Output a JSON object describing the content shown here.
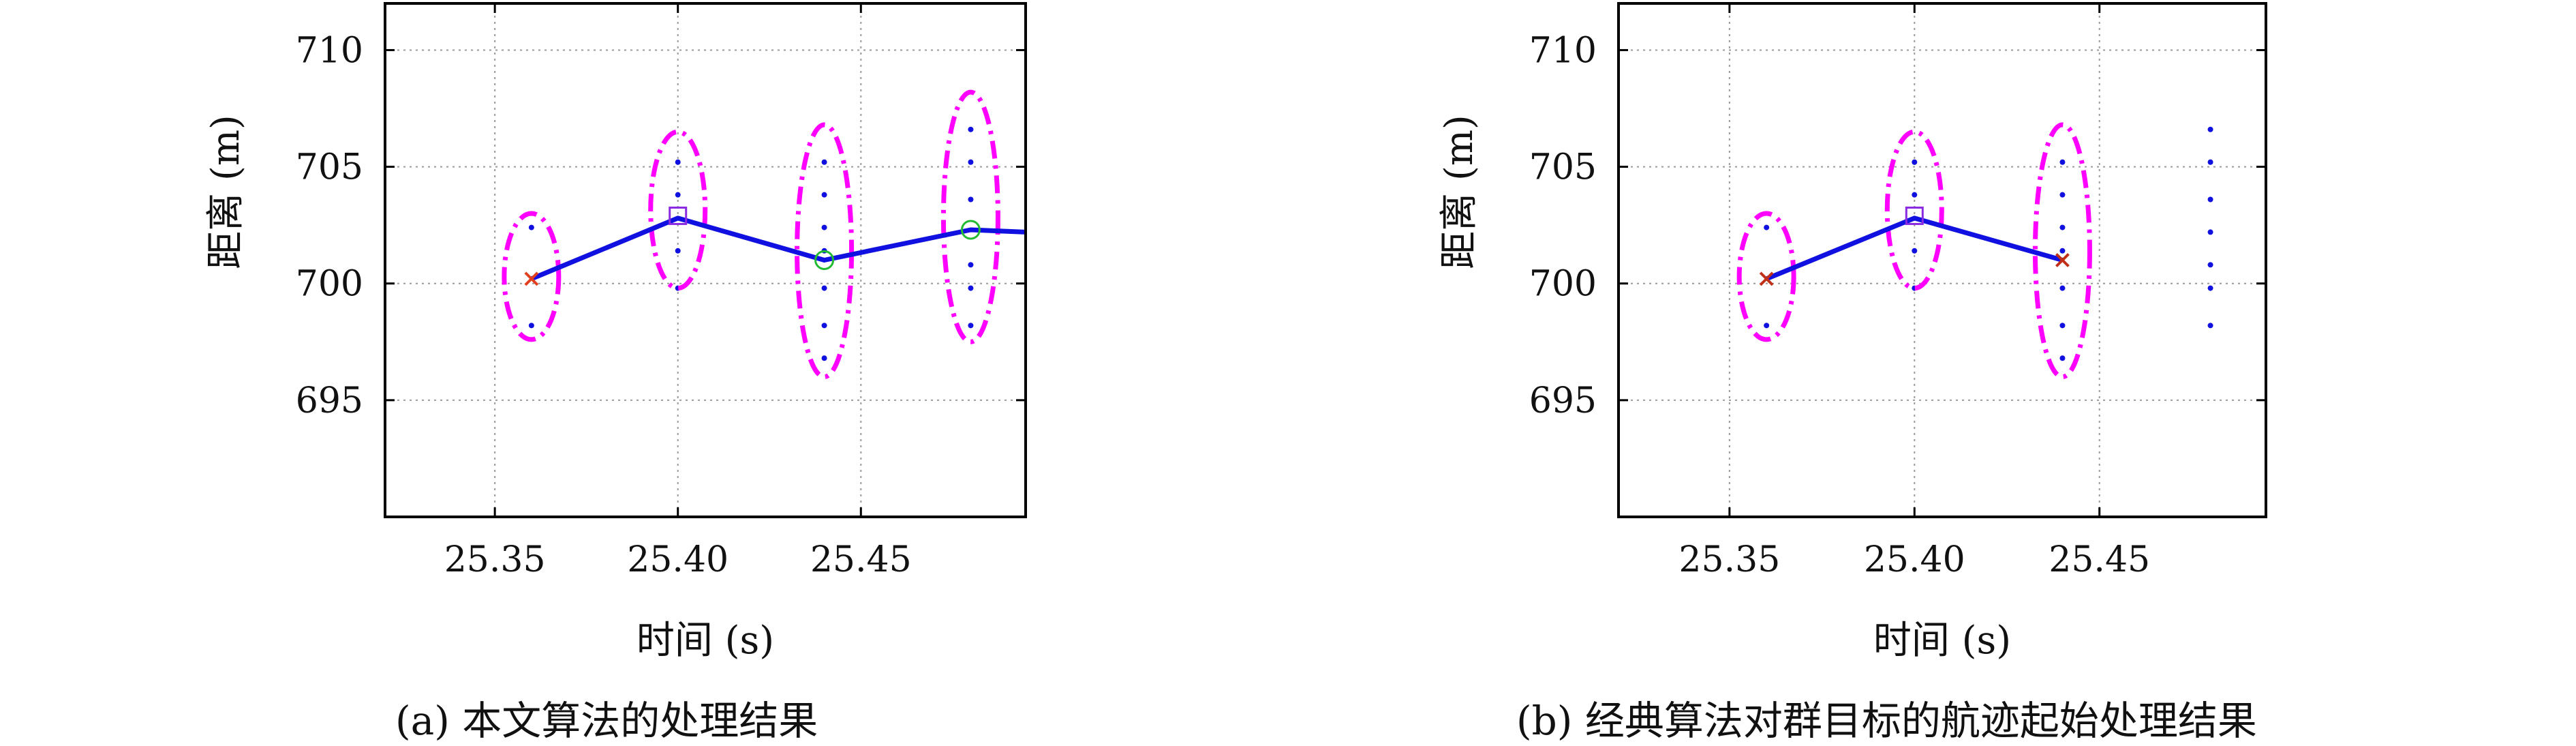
{
  "chart_data": [
    {
      "type": "scatter",
      "caption": "(a) 本文算法的处理结果",
      "xlabel": "时间 (s)",
      "ylabel": "距离 (m)",
      "xlim": [
        25.32,
        25.495
      ],
      "ylim": [
        690,
        712
      ],
      "xticks": [
        25.35,
        25.4,
        25.45
      ],
      "xtick_labels": [
        "25.35",
        "25.40",
        "25.45"
      ],
      "yticks": [
        695,
        700,
        705,
        710
      ],
      "ytick_labels": [
        "695",
        "700",
        "705",
        "710"
      ],
      "grid": true,
      "measurements": [
        {
          "x": 25.36,
          "y": [
            698.2,
            702.4
          ]
        },
        {
          "x": 25.4,
          "y": [
            699.8,
            701.4,
            703.8,
            705.2
          ]
        },
        {
          "x": 25.44,
          "y": [
            696.8,
            698.2,
            699.8,
            701.4,
            702.4,
            703.8,
            705.2
          ]
        },
        {
          "x": 25.48,
          "y": [
            698.2,
            699.8,
            700.8,
            703.6,
            705.2,
            706.6
          ]
        }
      ],
      "track": {
        "x": [
          25.36,
          25.4,
          25.44,
          25.48,
          25.495
        ],
        "y": [
          700.2,
          702.8,
          701.0,
          702.3,
          702.2
        ]
      },
      "markers": [
        {
          "shape": "x",
          "x": 25.36,
          "y": 700.2
        },
        {
          "shape": "square",
          "x": 25.4,
          "y": 702.9
        },
        {
          "shape": "circle",
          "x": 25.44,
          "y": 701.0
        },
        {
          "shape": "circle",
          "x": 25.48,
          "y": 702.3
        }
      ],
      "gates": [
        {
          "x": 25.36,
          "y_range": [
            697.6,
            703.0
          ]
        },
        {
          "x": 25.4,
          "y_range": [
            699.8,
            706.5
          ]
        },
        {
          "x": 25.44,
          "y_range": [
            696.0,
            706.8
          ]
        },
        {
          "x": 25.48,
          "y_range": [
            697.5,
            708.2
          ]
        }
      ],
      "colors": {
        "track": "#1010e0",
        "gate": "#ff00ff",
        "points": "#1010e0",
        "x_marker": "#e04020",
        "square": "#8a2be2",
        "circle": "#22bb33",
        "grid": "#9a9a9a"
      }
    },
    {
      "type": "scatter",
      "caption": "(b) 经典算法对群目标的航迹起始处理结果",
      "xlabel": "时间 (s)",
      "ylabel": "距离 (m)",
      "xlim": [
        25.32,
        25.495
      ],
      "ylim": [
        690,
        712
      ],
      "xticks": [
        25.35,
        25.4,
        25.45
      ],
      "xtick_labels": [
        "25.35",
        "25.40",
        "25.45"
      ],
      "yticks": [
        695,
        700,
        705,
        710
      ],
      "ytick_labels": [
        "695",
        "700",
        "705",
        "710"
      ],
      "grid": true,
      "measurements": [
        {
          "x": 25.36,
          "y": [
            698.2,
            702.4
          ]
        },
        {
          "x": 25.4,
          "y": [
            699.8,
            701.4,
            703.8,
            705.2
          ]
        },
        {
          "x": 25.44,
          "y": [
            696.8,
            698.2,
            699.8,
            701.4,
            702.4,
            703.8,
            705.2
          ]
        },
        {
          "x": 25.48,
          "y": [
            698.2,
            699.8,
            700.8,
            702.2,
            703.6,
            705.2,
            706.6
          ]
        }
      ],
      "track": {
        "x": [
          25.36,
          25.4,
          25.44
        ],
        "y": [
          700.2,
          702.8,
          701.0
        ]
      },
      "markers": [
        {
          "shape": "x",
          "x": 25.36,
          "y": 700.2
        },
        {
          "shape": "square",
          "x": 25.4,
          "y": 702.9
        },
        {
          "shape": "x",
          "x": 25.44,
          "y": 701.0
        }
      ],
      "gates": [
        {
          "x": 25.36,
          "y_range": [
            697.6,
            703.0
          ]
        },
        {
          "x": 25.4,
          "y_range": [
            699.8,
            706.5
          ]
        },
        {
          "x": 25.44,
          "y_range": [
            696.0,
            706.8
          ]
        }
      ],
      "colors": {
        "track": "#1010e0",
        "gate": "#ff00ff",
        "points": "#1010e0",
        "x_marker": "#c03018",
        "square": "#8a2be2",
        "circle": "#22bb33",
        "grid": "#9a9a9a"
      }
    }
  ]
}
